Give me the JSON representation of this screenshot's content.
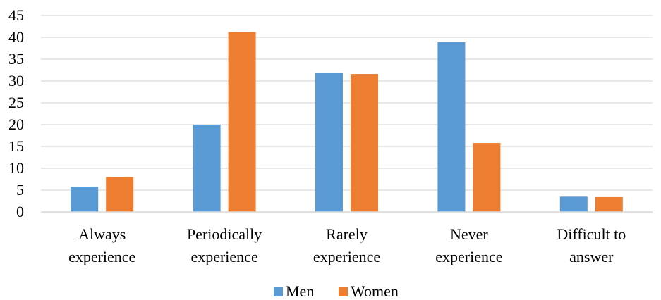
{
  "chart_data": {
    "type": "bar",
    "title": "",
    "xlabel": "",
    "ylabel": "",
    "categories": [
      [
        "Always",
        "experience"
      ],
      [
        "Periodically",
        "experience"
      ],
      [
        "Rarely",
        "experience"
      ],
      [
        "Never",
        "experience"
      ],
      [
        "Difficult to",
        "answer"
      ]
    ],
    "series": [
      {
        "name": "Men",
        "color": "#5B9BD5",
        "values": [
          5.8,
          20.0,
          31.8,
          38.9,
          3.5
        ]
      },
      {
        "name": "Women",
        "color": "#ED7D31",
        "values": [
          8.0,
          41.2,
          31.6,
          15.8,
          3.4
        ]
      }
    ],
    "ylim": [
      0,
      45
    ],
    "yticks": [
      0,
      5,
      10,
      15,
      20,
      25,
      30,
      35,
      40,
      45
    ],
    "grid": true,
    "legend_position": "bottom"
  }
}
